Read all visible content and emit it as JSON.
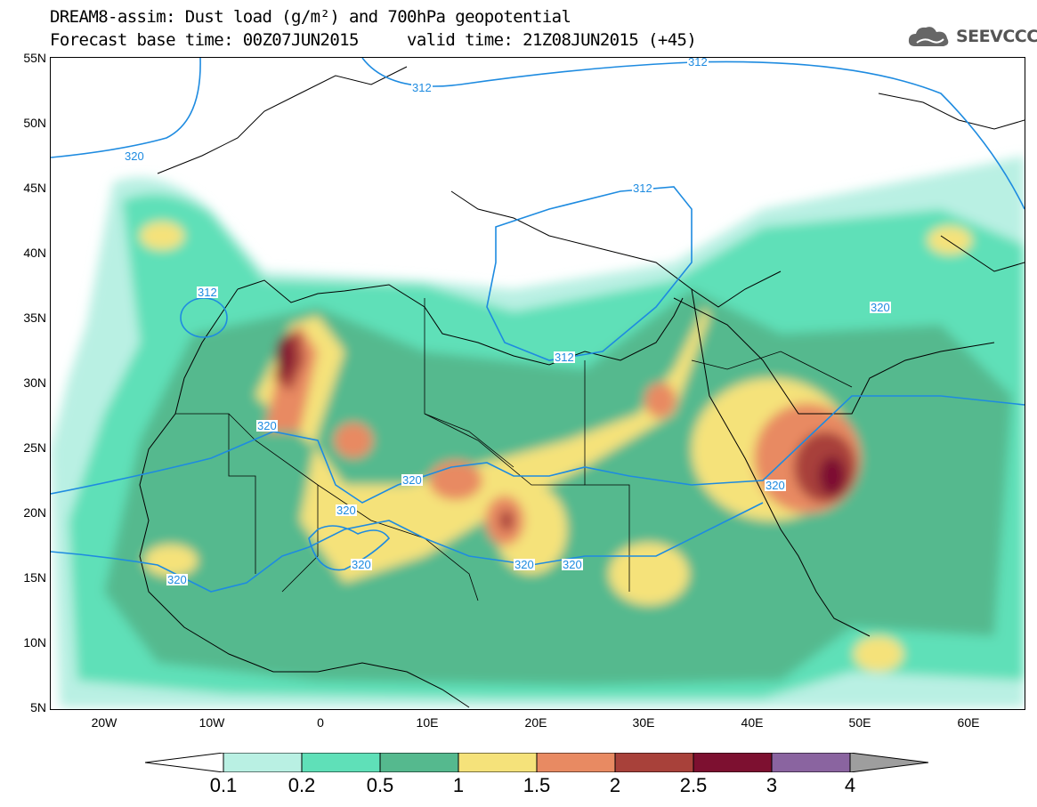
{
  "header": {
    "title_line1": "DREAM8-assim: Dust load (g/m²) and 700hPa geopotential",
    "title_line2": "Forecast base time: 00Z07JUN2015     valid time: 21Z08JUN2015 (+45)"
  },
  "logo": {
    "text": "SEEVCCC",
    "icon": "cloud-logo-icon"
  },
  "axes": {
    "lat_labels": [
      "55N",
      "50N",
      "45N",
      "40N",
      "35N",
      "30N",
      "25N",
      "20N",
      "15N",
      "10N",
      "5N"
    ],
    "lon_labels": [
      "20W",
      "10W",
      "0",
      "10E",
      "20E",
      "30E",
      "40E",
      "50E",
      "60E"
    ]
  },
  "contour_labels": [
    "312",
    "312",
    "312",
    "312",
    "312",
    "320",
    "320",
    "320",
    "320",
    "320",
    "320",
    "320",
    "320",
    "320",
    "320"
  ],
  "colorbar": {
    "labels": [
      "0.1",
      "0.2",
      "0.5",
      "1",
      "1.5",
      "2",
      "2.5",
      "3",
      "4"
    ],
    "colors": [
      "#b9f0e3",
      "#5fe0b8",
      "#55b98e",
      "#f5e27a",
      "#e88a62",
      "#a8413a",
      "#7d1030",
      "#8a64a0",
      "#9e9e9e"
    ]
  },
  "colors": {
    "geopotential_line": "#1e8be0",
    "borders": "#000000"
  }
}
